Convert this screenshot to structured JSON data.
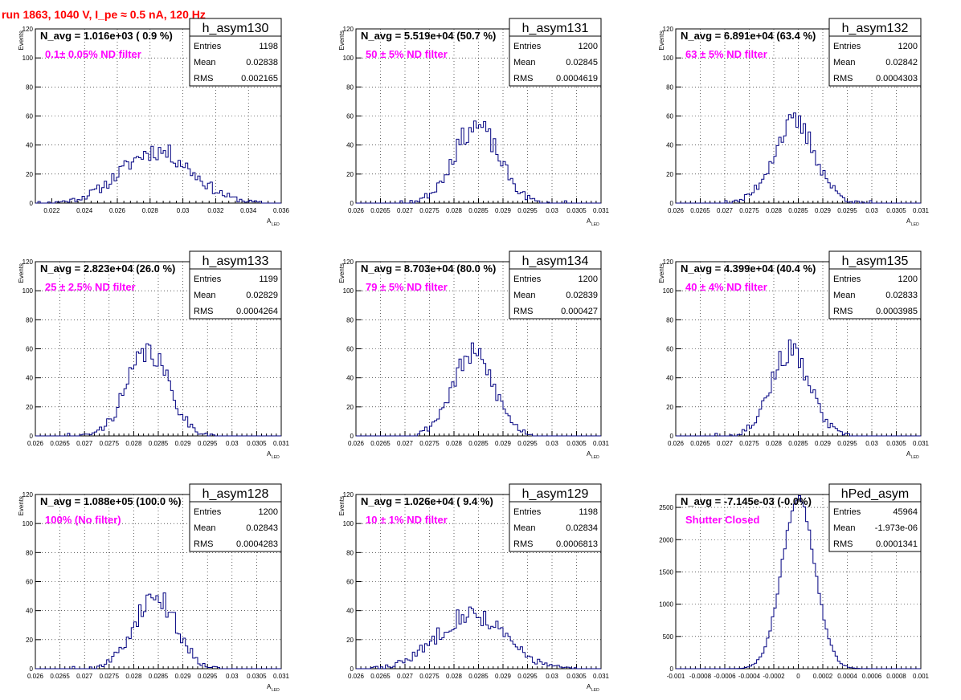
{
  "page": {
    "run_title": "run 1863,  1040 V, I_pe ≈ 0.5 nA, 120 Hz",
    "title_color": "#ff0000",
    "note_color": "#ff00ff",
    "line_color": "#000080"
  },
  "chart_data": [
    {
      "type": "histogram",
      "name": "h_asym130",
      "navg": "N_avg = 1.016e+03 ( 0.9 %)",
      "note": "0.1± 0.05% ND filter",
      "stats": {
        "entries": "1198",
        "mean": "0.02838",
        "rms": "0.002165"
      },
      "xlabel": "A",
      "xlabel_sub": "LED",
      "ylabel": "Events",
      "xlim": [
        0.021,
        0.036
      ],
      "ylim": [
        0,
        120
      ],
      "xticks": [
        0.022,
        0.024,
        0.026,
        0.028,
        0.03,
        0.032,
        0.034,
        0.036
      ],
      "xtick_labels": [
        "0.022",
        "0.024",
        "0.026",
        "0.028",
        "0.03",
        "0.032",
        "0.034",
        "0.036"
      ],
      "yticks": [
        0,
        20,
        40,
        60,
        80,
        100,
        120
      ],
      "ytick_labels": [
        "0",
        "20",
        "40",
        "60",
        "80",
        "100",
        "120"
      ],
      "mu": 0.02838,
      "sigma": 0.002165,
      "peak": 36,
      "nbins": 100,
      "seed": 11
    },
    {
      "type": "histogram",
      "name": "h_asym131",
      "navg": "N_avg = 5.519e+04 (50.7 %)",
      "note": "50 ± 5% ND filter",
      "stats": {
        "entries": "1200",
        "mean": "0.02845",
        "rms": "0.0004619"
      },
      "xlabel": "A",
      "xlabel_sub": "LED",
      "ylabel": "Events",
      "xlim": [
        0.026,
        0.031
      ],
      "ylim": [
        0,
        120
      ],
      "xticks": [
        0.026,
        0.0265,
        0.027,
        0.0275,
        0.028,
        0.0285,
        0.029,
        0.0295,
        0.03,
        0.0305,
        0.031
      ],
      "xtick_labels": [
        "0.026",
        "0.0265",
        "0.027",
        "0.0275",
        "0.028",
        "0.0285",
        "0.029",
        "0.0295",
        "0.03",
        "0.0305",
        "0.031"
      ],
      "yticks": [
        0,
        20,
        40,
        60,
        80,
        100,
        120
      ],
      "ytick_labels": [
        "0",
        "20",
        "40",
        "60",
        "80",
        "100",
        "120"
      ],
      "mu": 0.02845,
      "sigma": 0.0004619,
      "peak": 53,
      "nbins": 100,
      "seed": 23
    },
    {
      "type": "histogram",
      "name": "h_asym132",
      "navg": "N_avg = 6.891e+04 (63.4 %)",
      "note": "63 ± 5% ND filter",
      "stats": {
        "entries": "1200",
        "mean": "0.02842",
        "rms": "0.0004303"
      },
      "xlabel": "A",
      "xlabel_sub": "LED",
      "ylabel": "Events",
      "xlim": [
        0.026,
        0.031
      ],
      "ylim": [
        0,
        120
      ],
      "xticks": [
        0.026,
        0.0265,
        0.027,
        0.0275,
        0.028,
        0.0285,
        0.029,
        0.0295,
        0.03,
        0.0305,
        0.031
      ],
      "xtick_labels": [
        "0.026",
        "0.0265",
        "0.027",
        "0.0275",
        "0.028",
        "0.0285",
        "0.029",
        "0.0295",
        "0.03",
        "0.0305",
        "0.031"
      ],
      "yticks": [
        0,
        20,
        40,
        60,
        80,
        100,
        120
      ],
      "ytick_labels": [
        "0",
        "20",
        "40",
        "60",
        "80",
        "100",
        "120"
      ],
      "mu": 0.02842,
      "sigma": 0.0004303,
      "peak": 55,
      "nbins": 100,
      "seed": 37
    },
    {
      "type": "histogram",
      "name": "h_asym133",
      "navg": "N_avg = 2.823e+04 (26.0 %)",
      "note": "25 ± 2.5% ND filter",
      "stats": {
        "entries": "1199",
        "mean": "0.02829",
        "rms": "0.0004264"
      },
      "xlabel": "A",
      "xlabel_sub": "LED",
      "ylabel": "Events",
      "xlim": [
        0.026,
        0.031
      ],
      "ylim": [
        0,
        120
      ],
      "xticks": [
        0.026,
        0.0265,
        0.027,
        0.0275,
        0.028,
        0.0285,
        0.029,
        0.0295,
        0.03,
        0.0305,
        0.031
      ],
      "xtick_labels": [
        "0.026",
        "0.0265",
        "0.027",
        "0.0275",
        "0.028",
        "0.0285",
        "0.029",
        "0.0295",
        "0.03",
        "0.0305",
        "0.031"
      ],
      "yticks": [
        0,
        20,
        40,
        60,
        80,
        100,
        120
      ],
      "ytick_labels": [
        "0",
        "20",
        "40",
        "60",
        "80",
        "100",
        "120"
      ],
      "mu": 0.02829,
      "sigma": 0.0004264,
      "peak": 58,
      "nbins": 100,
      "seed": 41
    },
    {
      "type": "histogram",
      "name": "h_asym134",
      "navg": "N_avg = 8.703e+04 (80.0 %)",
      "note": "79 ± 5% ND filter",
      "stats": {
        "entries": "1200",
        "mean": "0.02839",
        "rms": "0.000427"
      },
      "xlabel": "A",
      "xlabel_sub": "LED",
      "ylabel": "Events",
      "xlim": [
        0.026,
        0.031
      ],
      "ylim": [
        0,
        120
      ],
      "xticks": [
        0.026,
        0.0265,
        0.027,
        0.0275,
        0.028,
        0.0285,
        0.029,
        0.0295,
        0.03,
        0.0305,
        0.031
      ],
      "xtick_labels": [
        "0.026",
        "0.0265",
        "0.027",
        "0.0275",
        "0.028",
        "0.0285",
        "0.029",
        "0.0295",
        "0.03",
        "0.0305",
        "0.031"
      ],
      "yticks": [
        0,
        20,
        40,
        60,
        80,
        100,
        120
      ],
      "ytick_labels": [
        "0",
        "20",
        "40",
        "60",
        "80",
        "100",
        "120"
      ],
      "mu": 0.02839,
      "sigma": 0.000427,
      "peak": 56,
      "nbins": 100,
      "seed": 53
    },
    {
      "type": "histogram",
      "name": "h_asym135",
      "navg": "N_avg = 4.399e+04 (40.4 %)",
      "note": "40 ± 4% ND filter",
      "stats": {
        "entries": "1200",
        "mean": "0.02833",
        "rms": "0.0003985"
      },
      "xlabel": "A",
      "xlabel_sub": "LED",
      "ylabel": "Events",
      "xlim": [
        0.026,
        0.031
      ],
      "ylim": [
        0,
        120
      ],
      "xticks": [
        0.026,
        0.0265,
        0.027,
        0.0275,
        0.028,
        0.0285,
        0.029,
        0.0295,
        0.03,
        0.0305,
        0.031
      ],
      "xtick_labels": [
        "0.026",
        "0.0265",
        "0.027",
        "0.0275",
        "0.028",
        "0.0285",
        "0.029",
        "0.0295",
        "0.03",
        "0.0305",
        "0.031"
      ],
      "yticks": [
        0,
        20,
        40,
        60,
        80,
        100,
        120
      ],
      "ytick_labels": [
        "0",
        "20",
        "40",
        "60",
        "80",
        "100",
        "120"
      ],
      "mu": 0.02833,
      "sigma": 0.0003985,
      "peak": 58,
      "nbins": 100,
      "seed": 67
    },
    {
      "type": "histogram",
      "name": "h_asym128",
      "navg": "N_avg = 1.088e+05 (100.0 %)",
      "note": "100% (No filter)",
      "stats": {
        "entries": "1200",
        "mean": "0.02843",
        "rms": "0.0004283"
      },
      "xlabel": "A",
      "xlabel_sub": "LED",
      "ylabel": "Events",
      "xlim": [
        0.026,
        0.031
      ],
      "ylim": [
        0,
        120
      ],
      "xticks": [
        0.026,
        0.0265,
        0.027,
        0.0275,
        0.028,
        0.0285,
        0.029,
        0.0295,
        0.03,
        0.0305,
        0.031
      ],
      "xtick_labels": [
        "0.026",
        "0.0265",
        "0.027",
        "0.0275",
        "0.028",
        "0.0285",
        "0.029",
        "0.0295",
        "0.03",
        "0.0305",
        "0.031"
      ],
      "yticks": [
        0,
        20,
        40,
        60,
        80,
        100,
        120
      ],
      "ytick_labels": [
        "0",
        "20",
        "40",
        "60",
        "80",
        "100",
        "120"
      ],
      "mu": 0.02843,
      "sigma": 0.0004283,
      "peak": 50,
      "nbins": 100,
      "seed": 71
    },
    {
      "type": "histogram",
      "name": "h_asym129",
      "navg": "N_avg = 1.026e+04 ( 9.4 %)",
      "note": "10 ± 1% ND filter",
      "stats": {
        "entries": "1198",
        "mean": "0.02834",
        "rms": "0.0006813"
      },
      "xlabel": "A",
      "xlabel_sub": "LED",
      "ylabel": "Events",
      "xlim": [
        0.026,
        0.031
      ],
      "ylim": [
        0,
        120
      ],
      "xticks": [
        0.026,
        0.0265,
        0.027,
        0.0275,
        0.028,
        0.0285,
        0.029,
        0.0295,
        0.03,
        0.0305,
        0.031
      ],
      "xtick_labels": [
        "0.026",
        "0.0265",
        "0.027",
        "0.0275",
        "0.028",
        "0.0285",
        "0.029",
        "0.0295",
        "0.03",
        "0.0305",
        "0.031"
      ],
      "yticks": [
        0,
        20,
        40,
        60,
        80,
        100,
        120
      ],
      "ytick_labels": [
        "0",
        "20",
        "40",
        "60",
        "80",
        "100",
        "120"
      ],
      "mu": 0.02834,
      "sigma": 0.0006813,
      "peak": 38,
      "nbins": 100,
      "seed": 83
    },
    {
      "type": "histogram",
      "name": "hPed_asym",
      "navg": "N_avg = -7.145e-03 (-0.0%)",
      "note": "Shutter Closed",
      "stats": {
        "entries": "45964",
        "mean": "-1.973e-06",
        "rms": "0.0001341"
      },
      "xlabel": "",
      "xlabel_sub": "",
      "ylabel": "",
      "xlim": [
        -0.001,
        0.001
      ],
      "ylim": [
        0,
        2700
      ],
      "xticks": [
        -0.001,
        -0.0008,
        -0.0006,
        -0.0004,
        -0.0002,
        0,
        0.0002,
        0.0004,
        0.0006,
        0.0008,
        0.001
      ],
      "xtick_labels": [
        "-0.001",
        "-0.0008",
        "-0.0006",
        "-0.0004",
        "-0.0002",
        "0",
        "0.0002",
        "0.0004",
        "0.0006",
        "0.0008",
        "0.001"
      ],
      "yticks": [
        0,
        500,
        1000,
        1500,
        2000,
        2500
      ],
      "ytick_labels": [
        "0",
        "500",
        "1000",
        "1500",
        "2000",
        "2500"
      ],
      "mu": 0.0,
      "sigma": 0.0001341,
      "peak": 2650,
      "nbins": 100,
      "seed": 97
    }
  ]
}
